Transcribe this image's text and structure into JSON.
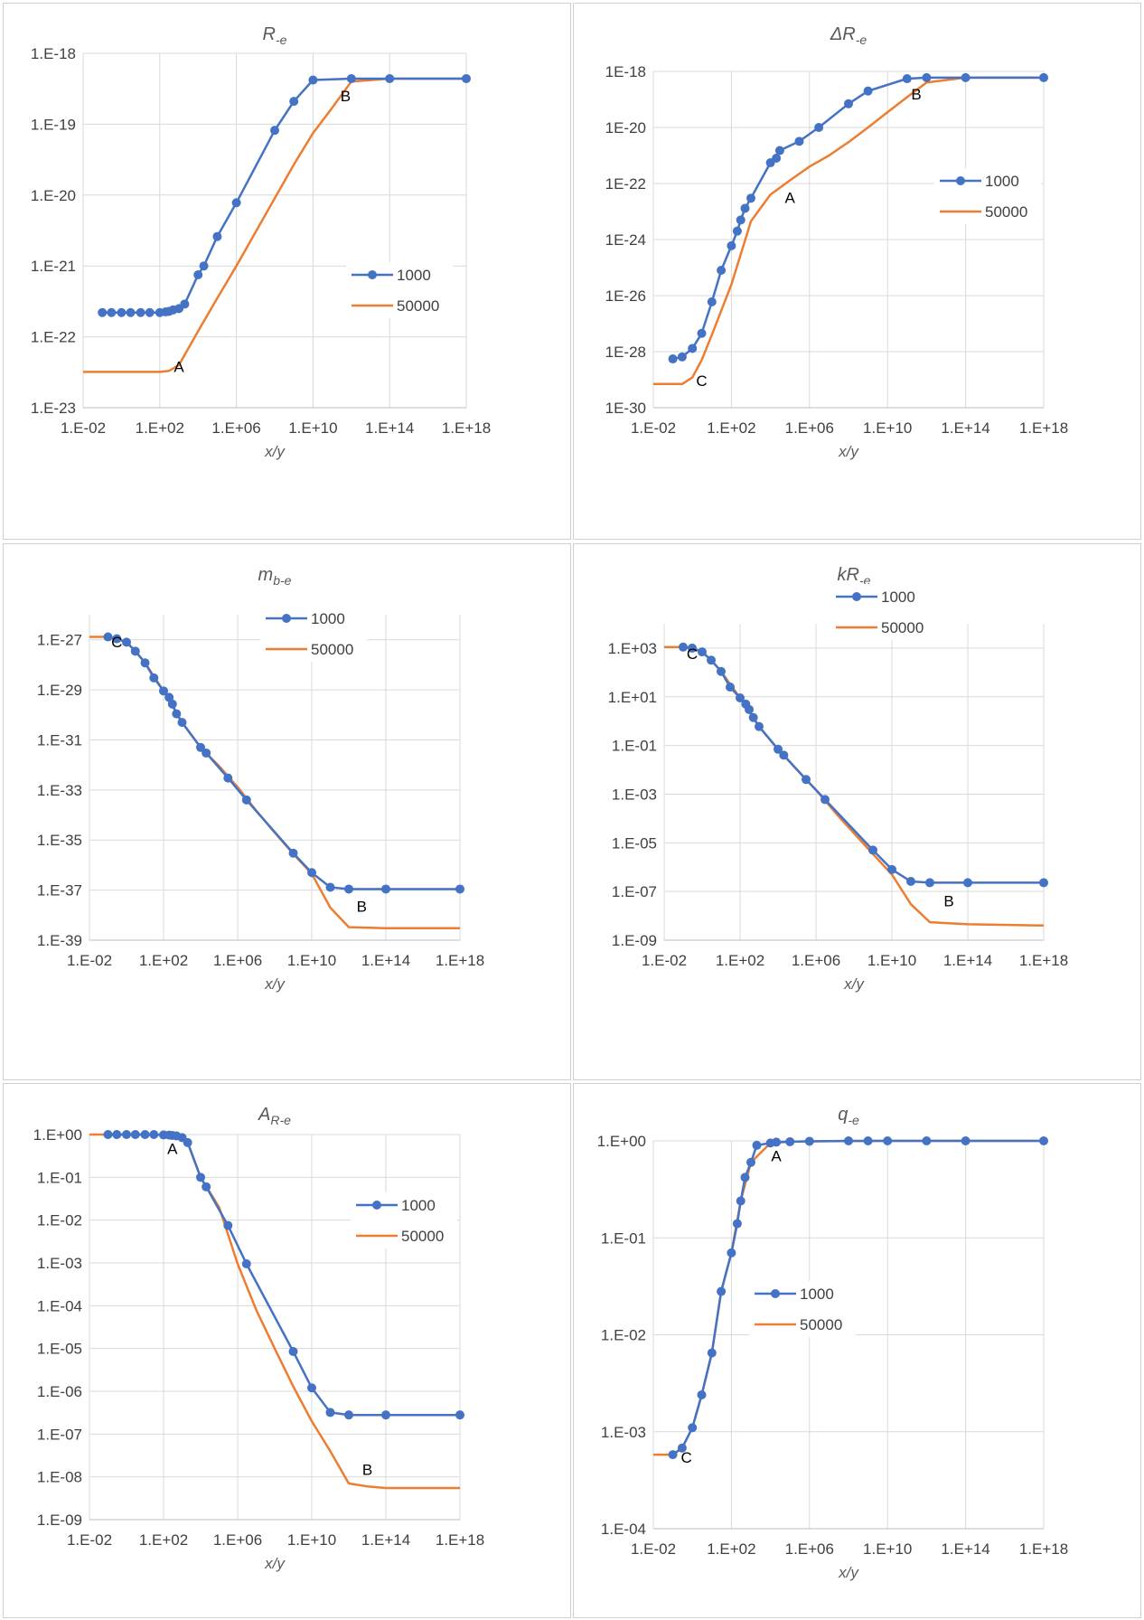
{
  "chart_data": [
    {
      "type": "line",
      "title_main": "R",
      "title_sub": "-e",
      "xlabel": "x/y",
      "ylabel": "",
      "xscale": "log",
      "yscale": "log",
      "xlim": [
        0.01,
        1e+18
      ],
      "ylim": [
        1e-23,
        1e-18
      ],
      "xticks": [
        0.01,
        100,
        1000000.0,
        10000000000.0,
        100000000000000.0,
        1e+18
      ],
      "xtick_labels": [
        "1.E-02",
        "1.E+02",
        "1.E+06",
        "1.E+10",
        "1.E+14",
        "1.E+18"
      ],
      "yticks": [
        1e-23,
        1e-22,
        1e-21,
        1e-20,
        1e-19,
        1e-18
      ],
      "ytick_labels": [
        "1.E-23",
        "1.E-22",
        "1.E-21",
        "1.E-20",
        "1.E-19",
        "1.E-18"
      ],
      "grid": true,
      "legend": "right",
      "series": [
        {
          "name": "1000",
          "color": "#4472C4",
          "markers": true,
          "x": [
            0.1,
            0.3,
            1,
            3,
            10,
            30,
            100,
            200,
            300,
            500,
            1000,
            2000,
            10000.0,
            20000.0,
            100000.0,
            1000000.0,
            100000000.0,
            1000000000.0,
            10000000000.0,
            1000000000000.0,
            100000000000000.0,
            1e+18
          ],
          "y": [
            2.2e-22,
            2.2e-22,
            2.2e-22,
            2.2e-22,
            2.2e-22,
            2.2e-22,
            2.2e-22,
            2.25e-22,
            2.28e-22,
            2.4e-22,
            2.5e-22,
            2.9e-22,
            7.5e-22,
            1e-21,
            2.6e-21,
            7.8e-21,
            8.2e-20,
            2.1e-19,
            4.2e-19,
            4.4e-19,
            4.4e-19,
            4.4e-19
          ]
        },
        {
          "name": "50000",
          "color": "#ED7D31",
          "markers": false,
          "x": [
            0.01,
            100,
            300,
            1000,
            10000.0,
            100000.0,
            1000000.0,
            10000000.0,
            100000000.0,
            1000000000.0,
            10000000000.0,
            100000000000.0,
            1000000000000.0,
            100000000000000.0,
            1e+18
          ],
          "y": [
            3.2e-23,
            3.2e-23,
            3.3e-23,
            4e-23,
            1.2e-22,
            3.5e-22,
            1e-21,
            3e-21,
            9e-21,
            2.7e-20,
            7.5e-20,
            1.7e-19,
            4e-19,
            4.4e-19,
            4.4e-19
          ]
        }
      ],
      "annotations": [
        {
          "text": "A",
          "x": 1000,
          "y": 3.2e-23
        },
        {
          "text": "B",
          "x": 500000000000.0,
          "y": 2.1e-19
        }
      ]
    },
    {
      "type": "line",
      "title_main": "ΔR",
      "title_sub": "-e",
      "xlabel": "x/y",
      "ylabel": "",
      "xscale": "log",
      "yscale": "log",
      "xlim": [
        0.01,
        1e+18
      ],
      "ylim": [
        1e-30,
        1e-18
      ],
      "xticks": [
        0.01,
        100,
        1000000.0,
        10000000000.0,
        100000000000000.0,
        1e+18
      ],
      "xtick_labels": [
        "1.E-02",
        "1.E+02",
        "1.E+06",
        "1.E+10",
        "1.E+14",
        "1.E+18"
      ],
      "yticks": [
        1e-30,
        1e-28,
        1e-26,
        1e-24,
        1e-22,
        1e-20,
        1e-18
      ],
      "ytick_labels": [
        "1E-30",
        "1E-28",
        "1E-26",
        "1E-24",
        "1E-22",
        "1E-20",
        "1E-18"
      ],
      "grid": true,
      "legend": "right",
      "series": [
        {
          "name": "1000",
          "color": "#4472C4",
          "markers": true,
          "x": [
            0.1,
            0.3,
            1,
            3,
            10,
            30,
            100,
            200,
            300,
            500,
            1000,
            10000.0,
            20000.0,
            30000.0,
            300000.0,
            3000000.0,
            100000000.0,
            1000000000.0,
            100000000000.0,
            1000000000000.0,
            100000000000000.0,
            1e+18
          ],
          "y": [
            5.5e-29,
            6.5e-29,
            1.3e-28,
            4.5e-28,
            6e-27,
            8e-26,
            6e-25,
            2e-24,
            5e-24,
            1.3e-23,
            3e-23,
            5.5e-22,
            8e-22,
            1.5e-21,
            3.2e-21,
            1e-20,
            7e-20,
            2e-19,
            5.5e-19,
            6e-19,
            6e-19,
            6e-19
          ]
        },
        {
          "name": "50000",
          "color": "#ED7D31",
          "markers": false,
          "x": [
            0.01,
            0.3,
            1,
            3,
            10,
            100,
            1000,
            10000.0,
            100000.0,
            1000000.0,
            10000000.0,
            100000000.0,
            1000000000.0,
            10000000000.0,
            100000000000.0,
            1000000000000.0,
            100000000000000.0,
            1e+18
          ],
          "y": [
            7e-30,
            7e-30,
            1.2e-29,
            5e-29,
            4e-28,
            2.5e-26,
            4.5e-24,
            4e-23,
            1.3e-22,
            4e-22,
            1e-21,
            3e-21,
            1e-20,
            3.5e-20,
            1.2e-19,
            4e-19,
            6e-19,
            6e-19
          ]
        }
      ],
      "annotations": [
        {
          "text": "A",
          "x": 100000.0,
          "y": 2e-23
        },
        {
          "text": "B",
          "x": 300000000000.0,
          "y": 1e-19
        },
        {
          "text": "C",
          "x": 3,
          "y": 6e-30
        }
      ]
    },
    {
      "type": "line",
      "title_main": "m",
      "title_sub": "b-e",
      "xlabel": "x/y",
      "ylabel": "",
      "xscale": "log",
      "yscale": "log",
      "xlim": [
        0.01,
        1e+18
      ],
      "ylim": [
        1e-39,
        1e-26
      ],
      "xticks": [
        0.01,
        100,
        1000000.0,
        10000000000.0,
        100000000000000.0,
        1e+18
      ],
      "xtick_labels": [
        "1.E-02",
        "1.E+02",
        "1.E+06",
        "1.E+10",
        "1.E+14",
        "1.E+18"
      ],
      "yticks": [
        1e-39,
        1e-37,
        1e-35,
        1e-33,
        1e-31,
        1e-29,
        1e-27
      ],
      "ytick_labels": [
        "1.E-39",
        "1.E-37",
        "1.E-35",
        "1.E-33",
        "1.E-31",
        "1.E-29",
        "1.E-27"
      ],
      "grid": true,
      "legend": "right",
      "series": [
        {
          "name": "1000",
          "color": "#4472C4",
          "markers": true,
          "x": [
            0.1,
            0.3,
            1,
            3,
            10,
            30,
            100,
            200,
            300,
            500,
            1000,
            10000.0,
            20000.0,
            300000.0,
            3000000.0,
            1000000000.0,
            10000000000.0,
            100000000000.0,
            1000000000000.0,
            100000000000000.0,
            1e+18
          ],
          "y": [
            1.3e-27,
            1.1e-27,
            8e-28,
            3.5e-28,
            1.2e-28,
            3e-29,
            9e-30,
            5e-30,
            2.7e-30,
            1.1e-30,
            5e-31,
            5e-32,
            3e-32,
            3e-33,
            4e-34,
            3e-36,
            5e-37,
            1.3e-37,
            1.1e-37,
            1.1e-37,
            1.1e-37
          ]
        },
        {
          "name": "50000",
          "color": "#ED7D31",
          "markers": false,
          "x": [
            0.01,
            0.1,
            0.3,
            1,
            3,
            10,
            100,
            1000,
            10000.0,
            100000.0,
            1000000.0,
            10000000.0,
            100000000.0,
            1000000000.0,
            10000000000.0,
            100000000000.0,
            1000000000000.0,
            100000000000000.0,
            1e+18
          ],
          "y": [
            1.3e-27,
            1.3e-27,
            1.1e-27,
            8e-28,
            3.5e-28,
            1.2e-28,
            9e-30,
            5e-31,
            5e-32,
            9e-33,
            1.3e-33,
            1.5e-34,
            2e-35,
            2.8e-36,
            4.5e-37,
            2e-38,
            3.3e-39,
            3e-39,
            3e-39
          ]
        }
      ],
      "annotations": [
        {
          "text": "B",
          "x": 5000000000000.0,
          "y": 1.4e-38
        },
        {
          "text": "C",
          "x": 0.3,
          "y": 5e-28
        }
      ]
    },
    {
      "type": "line",
      "title_main": "kR",
      "title_sub": "-e",
      "xlabel": "x/y",
      "ylabel": "",
      "xscale": "log",
      "yscale": "log",
      "xlim": [
        0.01,
        1e+18
      ],
      "ylim": [
        1e-09,
        10000.0
      ],
      "xticks": [
        0.01,
        100,
        1000000.0,
        10000000000.0,
        100000000000000.0,
        1e+18
      ],
      "xtick_labels": [
        "1.E-02",
        "1.E+02",
        "1.E+06",
        "1.E+10",
        "1.E+14",
        "1.E+18"
      ],
      "yticks": [
        1e-09,
        1e-07,
        1e-05,
        0.001,
        0.1,
        10,
        1000
      ],
      "ytick_labels": [
        "1.E-09",
        "1.E-07",
        "1.E-05",
        "1.E-03",
        "1.E-01",
        "1.E+01",
        "1.E+03"
      ],
      "grid": true,
      "legend": "right",
      "series": [
        {
          "name": "1000",
          "color": "#4472C4",
          "markers": true,
          "x": [
            0.1,
            0.3,
            1,
            3,
            10,
            30,
            100,
            200,
            300,
            500,
            1000,
            10000.0,
            20000.0,
            300000.0,
            3000000.0,
            1000000000.0,
            10000000000.0,
            100000000000.0,
            1000000000000.0,
            100000000000000.0,
            1e+18
          ],
          "y": [
            1100,
            1000,
            700,
            320,
            110,
            25,
            9,
            5,
            3,
            1.4,
            0.6,
            0.07,
            0.04,
            0.004,
            0.0006,
            5e-06,
            8e-07,
            2.6e-07,
            2.3e-07,
            2.3e-07,
            2.3e-07
          ]
        },
        {
          "name": "50000",
          "color": "#ED7D31",
          "markers": false,
          "x": [
            0.01,
            0.1,
            0.3,
            1,
            3,
            10,
            100,
            1000,
            10000.0,
            100000.0,
            1000000.0,
            10000000.0,
            100000000.0,
            1000000000.0,
            10000000000.0,
            100000000000.0,
            1000000000000.0,
            100000000000000.0,
            1e+18
          ],
          "y": [
            1100,
            1100,
            1000,
            700,
            320,
            110,
            9,
            0.6,
            0.07,
            0.01,
            0.0015,
            0.00018,
            2.5e-05,
            3.5e-06,
            5e-07,
            3e-08,
            5.5e-09,
            4.5e-09,
            4e-09
          ]
        }
      ],
      "annotations": [
        {
          "text": "B",
          "x": 10000000000000.0,
          "y": 2.5e-08
        },
        {
          "text": "C",
          "x": 0.3,
          "y": 350
        }
      ]
    },
    {
      "type": "line",
      "title_main": "A",
      "title_sub": "R-e",
      "xlabel": "x/y",
      "ylabel": "",
      "xscale": "log",
      "yscale": "log",
      "xlim": [
        0.01,
        1e+18
      ],
      "ylim": [
        1e-09,
        1
      ],
      "xticks": [
        0.01,
        100,
        1000000.0,
        10000000000.0,
        100000000000000.0,
        1e+18
      ],
      "xtick_labels": [
        "1.E-02",
        "1.E+02",
        "1.E+06",
        "1.E+10",
        "1.E+14",
        "1.E+18"
      ],
      "yticks": [
        1e-09,
        1e-08,
        1e-07,
        1e-06,
        1e-05,
        0.0001,
        0.001,
        0.01,
        0.1,
        1
      ],
      "ytick_labels": [
        "1.E-09",
        "1.E-08",
        "1.E-07",
        "1.E-06",
        "1.E-05",
        "1.E-04",
        "1.E-03",
        "1.E-02",
        "1.E-01",
        "1.E+00"
      ],
      "grid": true,
      "legend": "right",
      "series": [
        {
          "name": "1000",
          "color": "#4472C4",
          "markers": true,
          "x": [
            0.1,
            0.3,
            1,
            3,
            10,
            30,
            100,
            200,
            300,
            500,
            1000,
            2000,
            10000.0,
            20000.0,
            300000.0,
            3000000.0,
            1000000000.0,
            10000000000.0,
            100000000000.0,
            1000000000000.0,
            100000000000000.0,
            1e+18
          ],
          "y": [
            1,
            1,
            1,
            1,
            1,
            1,
            0.98,
            0.97,
            0.95,
            0.93,
            0.85,
            0.65,
            0.1,
            0.06,
            0.0075,
            0.00095,
            8.5e-06,
            1.2e-06,
            3.2e-07,
            2.8e-07,
            2.8e-07,
            2.8e-07
          ]
        },
        {
          "name": "50000",
          "color": "#ED7D31",
          "markers": false,
          "x": [
            0.01,
            0.1,
            1,
            10,
            100,
            300,
            1000,
            2000,
            10000.0,
            100000.0,
            1000000.0,
            10000000.0,
            100000000.0,
            1000000000.0,
            10000000000.0,
            100000000000.0,
            1000000000000.0,
            10000000000000.0,
            100000000000000.0,
            1000000000000000.0,
            1e+18
          ],
          "y": [
            1,
            1,
            1,
            1,
            0.98,
            0.95,
            0.85,
            0.65,
            0.1,
            0.02,
            0.00095,
            8e-05,
            1e-05,
            1.3e-06,
            2e-07,
            4e-08,
            7e-09,
            6e-09,
            5.5e-09,
            5.5e-09,
            5.5e-09
          ]
        }
      ],
      "annotations": [
        {
          "text": "A",
          "x": 300,
          "y": 0.35
        },
        {
          "text": "B",
          "x": 10000000000000.0,
          "y": 1.1e-08
        }
      ]
    },
    {
      "type": "line",
      "title_main": "q",
      "title_sub": "-e",
      "xlabel": "x/y",
      "ylabel": "",
      "xscale": "log",
      "yscale": "log",
      "xlim": [
        0.01,
        1e+18
      ],
      "ylim": [
        0.0001,
        1
      ],
      "xticks": [
        0.01,
        100,
        1000000.0,
        10000000000.0,
        100000000000000.0,
        1e+18
      ],
      "xtick_labels": [
        "1.E-02",
        "1.E+02",
        "1.E+06",
        "1.E+10",
        "1.E+14",
        "1.E+18"
      ],
      "yticks": [
        0.0001,
        0.001,
        0.01,
        0.1,
        1
      ],
      "ytick_labels": [
        "1.E-04",
        "1.E-03",
        "1.E-02",
        "1.E-01",
        "1.E+00"
      ],
      "grid": true,
      "legend": "right",
      "series": [
        {
          "name": "1000",
          "color": "#4472C4",
          "markers": true,
          "x": [
            0.1,
            0.3,
            1,
            3,
            10,
            30,
            100,
            200,
            300,
            500,
            1000,
            2000,
            10000.0,
            20000.0,
            100000.0,
            1000000.0,
            100000000.0,
            1000000000.0,
            10000000000.0,
            1000000000000.0,
            100000000000000.0,
            1e+18
          ],
          "y": [
            0.00058,
            0.00068,
            0.0011,
            0.0024,
            0.0065,
            0.028,
            0.07,
            0.14,
            0.24,
            0.42,
            0.6,
            0.9,
            0.95,
            0.97,
            0.98,
            0.99,
            1,
            1,
            1,
            1,
            1,
            1
          ]
        },
        {
          "name": "50000",
          "color": "#ED7D31",
          "markers": false,
          "x": [
            0.01,
            0.1,
            0.3,
            1,
            3,
            10,
            30,
            100,
            300,
            1000,
            10000.0,
            100000.0,
            1000000.0,
            10000000000.0,
            1e+18
          ],
          "y": [
            0.00058,
            0.00058,
            0.00068,
            0.0011,
            0.0024,
            0.0065,
            0.028,
            0.07,
            0.24,
            0.6,
            0.95,
            0.98,
            0.99,
            1,
            1
          ]
        }
      ],
      "annotations": [
        {
          "text": "A",
          "x": 20000.0,
          "y": 0.62
        },
        {
          "text": "C",
          "x": 0.5,
          "y": 0.00048
        }
      ]
    }
  ]
}
